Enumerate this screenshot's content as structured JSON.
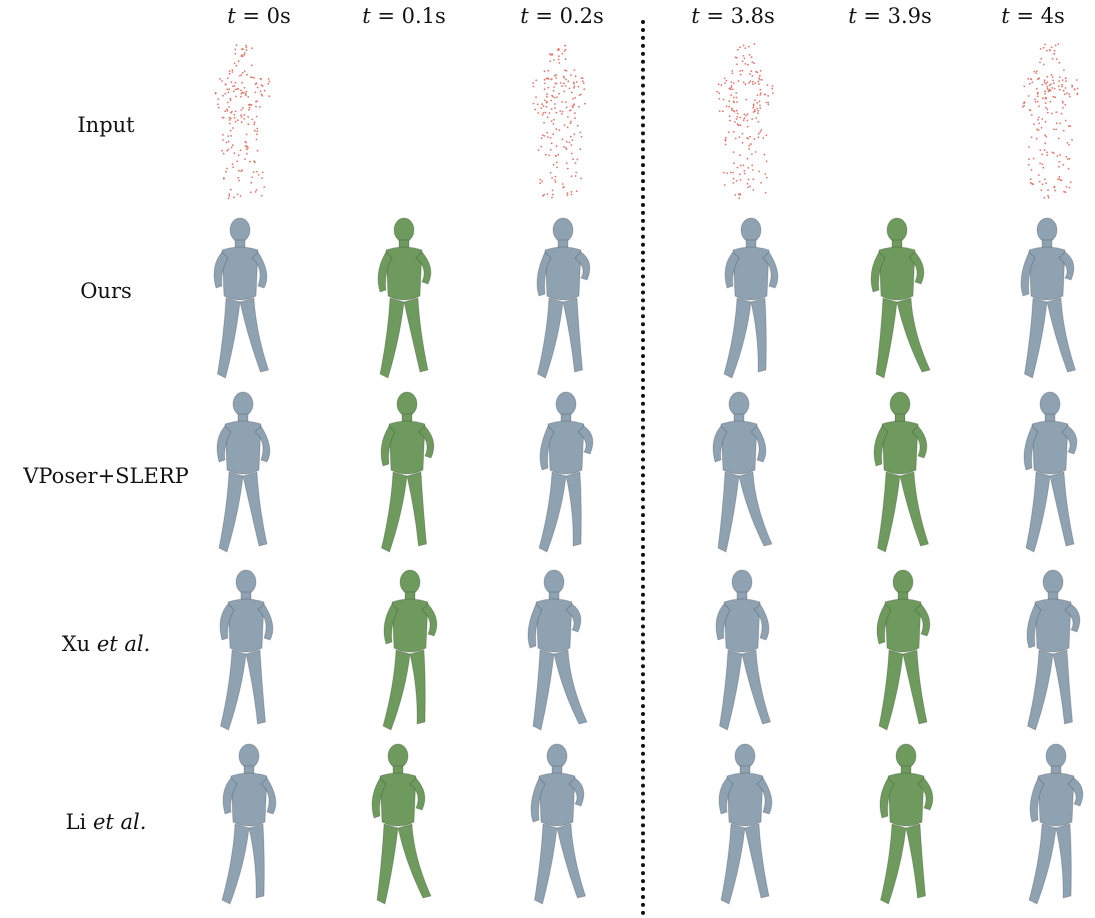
{
  "columns": [
    {
      "var": "t",
      "eq": " = ",
      "val": "0",
      "unit": "s"
    },
    {
      "var": "t",
      "eq": " = ",
      "val": "0.1",
      "unit": "s"
    },
    {
      "var": "t",
      "eq": " = ",
      "val": "0.2",
      "unit": "s"
    },
    {
      "var": "t",
      "eq": " = ",
      "val": "3.8",
      "unit": "s"
    },
    {
      "var": "t",
      "eq": " = ",
      "val": "3.9",
      "unit": "s"
    },
    {
      "var": "t",
      "eq": " = ",
      "val": "4",
      "unit": "s"
    }
  ],
  "rows": [
    {
      "label": "Input",
      "suffix": ""
    },
    {
      "label": "Ours",
      "suffix": ""
    },
    {
      "label": "VPoser+SLERP",
      "suffix": ""
    },
    {
      "label": "Xu ",
      "suffix": "et al."
    },
    {
      "label": "Li ",
      "suffix": "et al."
    }
  ],
  "colors": {
    "point_cloud": "#e0776a",
    "mesh_keyframe": "#8fa2b2",
    "mesh_interpolated": "#6f9a5e",
    "divider": "#111111"
  },
  "input_frames_present": [
    true,
    false,
    true,
    true,
    false,
    true
  ],
  "interpolated_columns": [
    1,
    4
  ]
}
